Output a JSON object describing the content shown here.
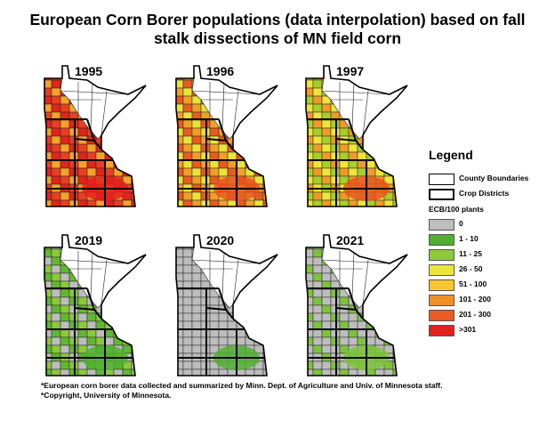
{
  "title": {
    "line1": "European Corn Borer populations (data interpolation) based on fall",
    "line2": "stalk dissections of MN field corn"
  },
  "maps": [
    {
      "year": "1995",
      "palette": [
        "#e8401f",
        "#f07a24",
        "#f5a12a",
        "#c9d428",
        "#e2241d",
        "#f7c52f"
      ],
      "dominant": "#ef6a22",
      "hotspot": "#e3201c"
    },
    {
      "year": "1996",
      "palette": [
        "#f0a028",
        "#f7c52f",
        "#e9e33a",
        "#ef7c25",
        "#e85a22",
        "#a6cf2c"
      ],
      "dominant": "#f2a02a",
      "hotspot": "#e8541f"
    },
    {
      "year": "1997",
      "palette": [
        "#f09a28",
        "#f7c52f",
        "#ede53a",
        "#e85a22",
        "#a6cf2c",
        "#ef7c25"
      ],
      "dominant": "#f3b12c",
      "hotspot": "#e8541f"
    },
    {
      "year": "2019",
      "palette": [
        "#bdbdbd",
        "#bdbdbd",
        "#60b832",
        "#bdbdbd",
        "#8cc93a",
        "#bdbdbd"
      ],
      "dominant": "#bdbdbd",
      "hotspot": "#4fb030"
    },
    {
      "year": "2020",
      "palette": [
        "#bdbdbd",
        "#bdbdbd",
        "#bdbdbd",
        "#5ab232",
        "#bdbdbd",
        "#8cc93a"
      ],
      "dominant": "#bdbdbd",
      "hotspot": "#4fb030"
    },
    {
      "year": "2021",
      "palette": [
        "#bdbdbd",
        "#bdbdbd",
        "#bdbdbd",
        "#bdbdbd",
        "#7cc43a",
        "#bdbdbd"
      ],
      "dominant": "#c4c4c4",
      "hotspot": "#7cc43a"
    }
  ],
  "legend": {
    "title": "Legend",
    "boundaries": [
      {
        "label": "County Boundaries",
        "style": "thin"
      },
      {
        "label": "Crop Districts",
        "style": "thick"
      }
    ],
    "subtitle": "ECB/100 plants",
    "classes": [
      {
        "label": "0",
        "color": "#bdbdbd"
      },
      {
        "label": "1 - 10",
        "color": "#4fb030"
      },
      {
        "label": "11 - 25",
        "color": "#8cc93a"
      },
      {
        "label": "26 - 50",
        "color": "#ede53a"
      },
      {
        "label": "51 - 100",
        "color": "#f7c52f"
      },
      {
        "label": "101 - 200",
        "color": "#f09128"
      },
      {
        "label": "201 - 300",
        "color": "#ea5a22"
      },
      {
        "label": ">301",
        "color": "#e3201c"
      }
    ]
  },
  "footnotes": {
    "line1": "*European corn borer data collected and summarized by Minn. Dept. of Agriculture and Univ. of Minnesota staff.",
    "line2": "*Copyright, University of Minnesota."
  }
}
